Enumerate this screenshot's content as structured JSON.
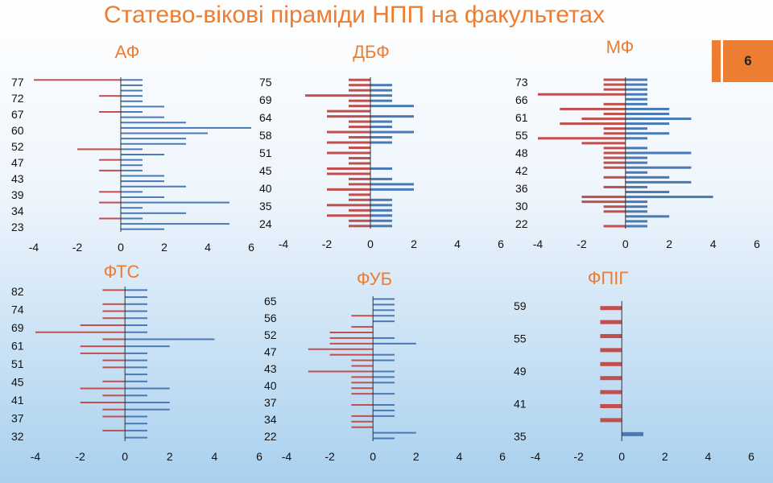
{
  "slide": {
    "title": "Статево-вікові піраміди НПП на факультетах",
    "page_number": "6",
    "colors": {
      "title": "#ed7d31",
      "male": "#4a7ab5",
      "female": "#c0504d",
      "axis": "#333333"
    }
  },
  "chart_data": [
    {
      "type": "bar",
      "orientation": "horizontal",
      "title": "АФ",
      "xlim": [
        -4,
        6
      ],
      "xticks": [
        -4,
        -2,
        0,
        2,
        4,
        6
      ],
      "ytick_labels": [
        "77",
        "72",
        "67",
        "60",
        "52",
        "47",
        "43",
        "39",
        "34",
        "23"
      ],
      "series": [
        {
          "values": [
            2,
            5,
            1,
            3,
            1,
            5,
            2,
            1,
            3,
            2,
            2,
            1,
            1,
            1,
            2,
            1,
            3,
            3,
            4,
            6,
            3,
            2,
            1,
            2,
            1,
            1,
            1,
            1,
            1
          ]
        },
        {
          "values": [
            0,
            0,
            -1,
            0,
            0,
            -1,
            0,
            -1,
            0,
            0,
            0,
            -1,
            0,
            -1,
            0,
            -2,
            0,
            0,
            0,
            0,
            0,
            0,
            -1,
            0,
            0,
            -1,
            0,
            0,
            -4
          ]
        }
      ]
    },
    {
      "type": "bar",
      "orientation": "horizontal",
      "title": "ДБФ",
      "xlim": [
        -4,
        6
      ],
      "xticks": [
        -4,
        -2,
        0,
        2,
        4,
        6
      ],
      "ytick_labels": [
        "75",
        "69",
        "64",
        "58",
        "51",
        "45",
        "40",
        "35",
        "24"
      ],
      "series": [
        {
          "values": [
            1,
            1,
            1,
            1,
            1,
            1,
            0,
            2,
            2,
            1,
            0,
            1,
            0,
            0,
            0,
            0,
            1,
            1,
            2,
            1,
            1,
            2,
            0,
            2,
            1,
            1,
            1,
            1,
            0
          ]
        },
        {
          "values": [
            -1,
            -1,
            -2,
            -1,
            -2,
            -1,
            -1,
            -2,
            -1,
            -1,
            -2,
            -2,
            -1,
            -1,
            -2,
            -1,
            -2,
            -1,
            -2,
            -1,
            -1,
            -2,
            -2,
            -1,
            -1,
            -3,
            -1,
            -1,
            -1
          ]
        }
      ]
    },
    {
      "type": "bar",
      "orientation": "horizontal",
      "title": "МФ",
      "xlim": [
        -4,
        6
      ],
      "xticks": [
        -4,
        -2,
        0,
        2,
        4,
        6
      ],
      "ytick_labels": [
        "73",
        "66",
        "61",
        "55",
        "48",
        "42",
        "36",
        "30",
        "22"
      ],
      "series": [
        {
          "values": [
            1,
            1,
            2,
            1,
            1,
            1,
            4,
            2,
            1,
            3,
            2,
            1,
            3,
            1,
            1,
            3,
            1,
            0,
            1,
            2,
            1,
            2,
            3,
            2,
            2,
            1,
            1,
            1,
            1,
            1,
            1
          ]
        },
        {
          "values": [
            -1,
            0,
            0,
            -1,
            -1,
            -2,
            -2,
            0,
            -1,
            0,
            -1,
            0,
            -1,
            -1,
            -1,
            -1,
            -1,
            -2,
            -4,
            -1,
            -1,
            -3,
            -2,
            -1,
            -3,
            -1,
            0,
            -4,
            -1,
            -1,
            -1
          ]
        }
      ]
    },
    {
      "type": "bar",
      "orientation": "horizontal",
      "title": "ФТС",
      "xlim": [
        -4,
        6
      ],
      "xticks": [
        -4,
        -2,
        0,
        2,
        4,
        6
      ],
      "ytick_labels": [
        "82",
        "74",
        "69",
        "61",
        "51",
        "45",
        "41",
        "37",
        "32"
      ],
      "series": [
        {
          "values": [
            1,
            1,
            1,
            1,
            2,
            2,
            1,
            2,
            1,
            1,
            1,
            1,
            1,
            2,
            4,
            1,
            1,
            1,
            1,
            1,
            1,
            1
          ]
        },
        {
          "values": [
            0,
            -1,
            0,
            -1,
            -1,
            -2,
            -1,
            -2,
            -1,
            0,
            -1,
            -1,
            -2,
            -2,
            -1,
            -4,
            -2,
            -1,
            -1,
            -1,
            0,
            -1
          ]
        }
      ]
    },
    {
      "type": "bar",
      "orientation": "horizontal",
      "title": "ФУБ",
      "xlim": [
        -4,
        6
      ],
      "xticks": [
        -4,
        -2,
        0,
        2,
        4,
        6
      ],
      "ytick_labels": [
        "65",
        "56",
        "52",
        "47",
        "43",
        "40",
        "37",
        "34",
        "22"
      ],
      "series": [
        {
          "values": [
            1,
            2,
            0,
            0,
            1,
            1,
            1,
            0,
            1,
            0,
            1,
            1,
            1,
            0,
            1,
            1,
            0,
            2,
            1,
            0,
            0,
            1,
            1,
            1,
            1,
            1
          ]
        },
        {
          "values": [
            0,
            0,
            -1,
            -1,
            -1,
            0,
            -1,
            0,
            -1,
            -1,
            -1,
            -1,
            -3,
            -1,
            -1,
            -2,
            -3,
            -2,
            -2,
            -2,
            -1,
            0,
            -1,
            0,
            0,
            0
          ]
        }
      ]
    },
    {
      "type": "bar",
      "orientation": "horizontal",
      "title": "ФПІГ",
      "xlim": [
        -4,
        6
      ],
      "xticks": [
        -4,
        -2,
        0,
        2,
        4,
        6
      ],
      "ytick_labels": [
        "59",
        "55",
        "49",
        "41",
        "35"
      ],
      "series": [
        {
          "values": [
            1,
            0,
            0,
            0,
            0,
            0,
            0,
            0,
            0,
            0
          ]
        },
        {
          "values": [
            0,
            -1,
            -1,
            -1,
            -1,
            -1,
            -1,
            -1,
            -1,
            -1
          ]
        }
      ]
    }
  ]
}
